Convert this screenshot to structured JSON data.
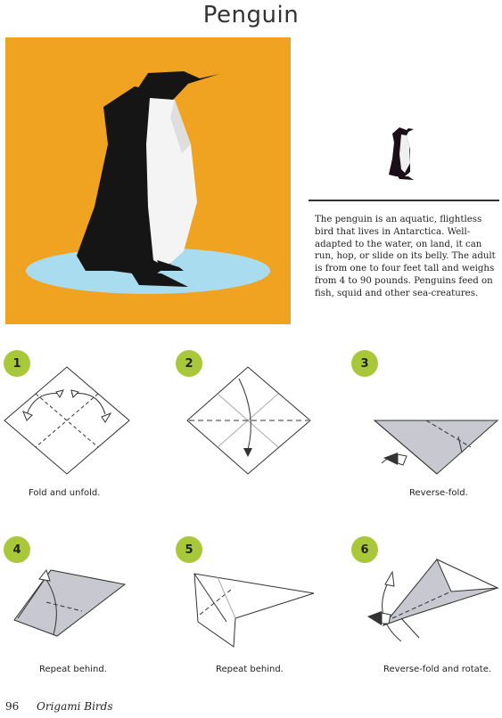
{
  "page": {
    "title": "Penguin",
    "description": "The penguin is an aquatic, flightless bird that lives in Antarctica. Well-adapted to the water, on land, it can run, hop, or slide on its belly. The adult is from one to four feet tall and weighs from 4 to 90 pounds. Penguins feed on fish, squid and other sea-creatures.",
    "page_number": "96",
    "book_title": "Origami Birds"
  },
  "colors": {
    "hero_background": "#f0a320",
    "ice": "#a9dcef",
    "badge": "#a8c83a",
    "paper_gray": "#c8c8d0"
  },
  "steps": [
    {
      "number": "1",
      "caption": "Fold and unfold."
    },
    {
      "number": "2",
      "caption": ""
    },
    {
      "number": "3",
      "caption": "Reverse-fold."
    },
    {
      "number": "4",
      "caption": "Repeat behind."
    },
    {
      "number": "5",
      "caption": "Repeat behind."
    },
    {
      "number": "6",
      "caption": "Reverse-fold and rotate."
    }
  ]
}
